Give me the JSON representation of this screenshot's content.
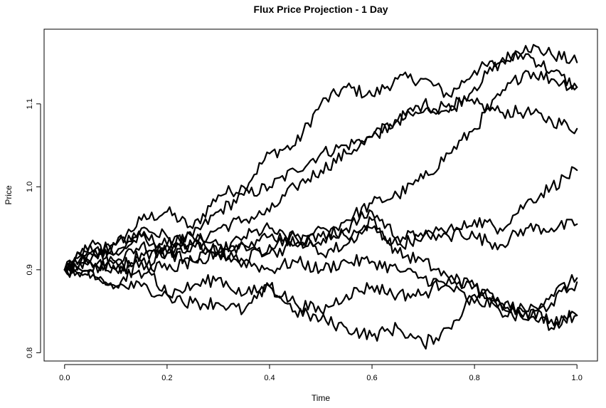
{
  "chart_data": {
    "type": "line",
    "title": "Flux Price Projection - 1 Day",
    "xlabel": "Time",
    "ylabel": "Price",
    "xlim": [
      -0.04,
      1.04
    ],
    "ylim": [
      0.79,
      1.19
    ],
    "xticks": [
      0.0,
      0.2,
      0.4,
      0.6,
      0.8,
      1.0
    ],
    "xtick_labels": [
      "0.0",
      "0.2",
      "0.4",
      "0.6",
      "0.8",
      "1.0"
    ],
    "yticks": [
      0.8,
      0.9,
      1.0,
      1.1
    ],
    "ytick_labels": [
      "0.8",
      "0.9",
      "1.0",
      "1.1"
    ],
    "grid": false,
    "line_color": "#000000",
    "series": [
      {
        "x": [
          0,
          0.05,
          0.1,
          0.15,
          0.2,
          0.25,
          0.3,
          0.35,
          0.4,
          0.45,
          0.5,
          0.55,
          0.6,
          0.65,
          0.7,
          0.75,
          0.8,
          0.85,
          0.9,
          0.95,
          1.0
        ],
        "values": [
          0.9,
          0.91,
          0.93,
          0.96,
          0.97,
          0.95,
          0.99,
          1.0,
          1.04,
          1.05,
          1.1,
          1.12,
          1.11,
          1.13,
          1.13,
          1.11,
          1.14,
          1.15,
          1.17,
          1.16,
          1.15
        ]
      },
      {
        "x": [
          0,
          0.05,
          0.1,
          0.15,
          0.2,
          0.25,
          0.3,
          0.35,
          0.4,
          0.45,
          0.5,
          0.55,
          0.6,
          0.65,
          0.7,
          0.75,
          0.8,
          0.85,
          0.9,
          0.95,
          1.0
        ],
        "values": [
          0.9,
          0.92,
          0.92,
          0.94,
          0.93,
          0.94,
          0.97,
          0.99,
          1.0,
          1.02,
          1.04,
          1.05,
          1.06,
          1.08,
          1.09,
          1.1,
          1.1,
          1.09,
          1.09,
          1.08,
          1.07
        ]
      },
      {
        "x": [
          0,
          0.05,
          0.1,
          0.15,
          0.2,
          0.25,
          0.3,
          0.35,
          0.4,
          0.45,
          0.5,
          0.55,
          0.6,
          0.65,
          0.7,
          0.75,
          0.8,
          0.85,
          0.9,
          0.95,
          1.0
        ],
        "values": [
          0.9,
          0.9,
          0.91,
          0.93,
          0.92,
          0.93,
          0.95,
          0.96,
          0.97,
          1.0,
          1.02,
          1.04,
          1.06,
          1.08,
          1.1,
          1.09,
          1.12,
          1.15,
          1.16,
          1.14,
          1.12
        ]
      },
      {
        "x": [
          0,
          0.05,
          0.1,
          0.15,
          0.2,
          0.25,
          0.3,
          0.35,
          0.4,
          0.45,
          0.5,
          0.55,
          0.6,
          0.65,
          0.7,
          0.75,
          0.8,
          0.85,
          0.9,
          0.95,
          1.0
        ],
        "values": [
          0.9,
          0.93,
          0.92,
          0.95,
          0.94,
          0.93,
          0.92,
          0.94,
          0.95,
          0.93,
          0.94,
          0.96,
          0.98,
          0.99,
          1.01,
          1.04,
          1.07,
          1.11,
          1.14,
          1.13,
          1.12
        ]
      },
      {
        "x": [
          0,
          0.05,
          0.1,
          0.15,
          0.2,
          0.25,
          0.3,
          0.35,
          0.4,
          0.45,
          0.5,
          0.55,
          0.6,
          0.65,
          0.7,
          0.75,
          0.8,
          0.85,
          0.9,
          0.95,
          1.0
        ],
        "values": [
          0.9,
          0.91,
          0.9,
          0.92,
          0.92,
          0.93,
          0.93,
          0.93,
          0.94,
          0.94,
          0.93,
          0.95,
          0.97,
          0.94,
          0.94,
          0.94,
          0.96,
          0.95,
          0.98,
          1.0,
          1.02
        ]
      },
      {
        "x": [
          0,
          0.05,
          0.1,
          0.15,
          0.2,
          0.25,
          0.3,
          0.35,
          0.4,
          0.45,
          0.5,
          0.55,
          0.6,
          0.65,
          0.7,
          0.75,
          0.8,
          0.85,
          0.9,
          0.95,
          1.0
        ],
        "values": [
          0.9,
          0.92,
          0.93,
          0.94,
          0.92,
          0.91,
          0.92,
          0.93,
          0.92,
          0.93,
          0.95,
          0.94,
          0.95,
          0.93,
          0.94,
          0.95,
          0.94,
          0.93,
          0.95,
          0.95,
          0.955
        ]
      },
      {
        "x": [
          0,
          0.05,
          0.1,
          0.15,
          0.2,
          0.25,
          0.3,
          0.35,
          0.4,
          0.45,
          0.5,
          0.55,
          0.6,
          0.65,
          0.7,
          0.75,
          0.8,
          0.85,
          0.9,
          0.95,
          1.0
        ],
        "values": [
          0.9,
          0.93,
          0.91,
          0.89,
          0.93,
          0.94,
          0.92,
          0.91,
          0.93,
          0.94,
          0.92,
          0.93,
          0.96,
          0.92,
          0.91,
          0.89,
          0.88,
          0.86,
          0.85,
          0.84,
          0.845
        ]
      },
      {
        "x": [
          0,
          0.05,
          0.1,
          0.15,
          0.2,
          0.25,
          0.3,
          0.35,
          0.4,
          0.45,
          0.5,
          0.55,
          0.6,
          0.65,
          0.7,
          0.75,
          0.8,
          0.85,
          0.9,
          0.95,
          1.0
        ],
        "values": [
          0.9,
          0.9,
          0.88,
          0.91,
          0.9,
          0.91,
          0.92,
          0.91,
          0.9,
          0.91,
          0.9,
          0.91,
          0.91,
          0.9,
          0.89,
          0.88,
          0.86,
          0.86,
          0.85,
          0.87,
          0.89
        ]
      },
      {
        "x": [
          0,
          0.05,
          0.1,
          0.15,
          0.2,
          0.25,
          0.3,
          0.35,
          0.4,
          0.45,
          0.5,
          0.55,
          0.6,
          0.65,
          0.7,
          0.75,
          0.8,
          0.85,
          0.9,
          0.95,
          1.0
        ],
        "values": [
          0.9,
          0.89,
          0.88,
          0.88,
          0.87,
          0.88,
          0.89,
          0.87,
          0.88,
          0.86,
          0.85,
          0.87,
          0.88,
          0.87,
          0.87,
          0.89,
          0.88,
          0.85,
          0.84,
          0.86,
          0.885
        ]
      },
      {
        "x": [
          0,
          0.05,
          0.1,
          0.15,
          0.2,
          0.25,
          0.3,
          0.35,
          0.4,
          0.45,
          0.5,
          0.55,
          0.6,
          0.65,
          0.7,
          0.75,
          0.8,
          0.85,
          0.9,
          0.95,
          1.0
        ],
        "values": [
          0.9,
          0.91,
          0.9,
          0.91,
          0.87,
          0.86,
          0.86,
          0.85,
          0.88,
          0.85,
          0.84,
          0.83,
          0.82,
          0.83,
          0.81,
          0.83,
          0.87,
          0.86,
          0.85,
          0.83,
          0.845
        ]
      }
    ]
  }
}
